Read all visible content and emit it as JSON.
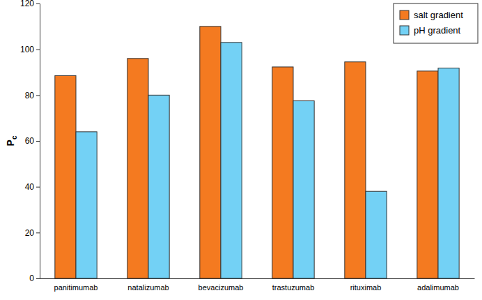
{
  "chart_data": {
    "type": "bar",
    "y_label": "Pc",
    "categories": [
      "panitimumab",
      "natalizumab",
      "bevacizumab",
      "trastuzumab",
      "rituximab",
      "adalimumab"
    ],
    "series": [
      {
        "name": "salt gradient",
        "color": "#f47a20",
        "values": [
          88.5,
          96,
          110,
          92.3,
          94.5,
          90.5
        ]
      },
      {
        "name": "pH gradient",
        "color": "#73d1f5",
        "values": [
          64,
          80,
          103,
          77.5,
          38,
          91.8
        ]
      }
    ],
    "ylim": [
      0,
      120
    ],
    "yticks": [
      0,
      20,
      40,
      60,
      80,
      100,
      120
    ],
    "legend": "top-right"
  }
}
